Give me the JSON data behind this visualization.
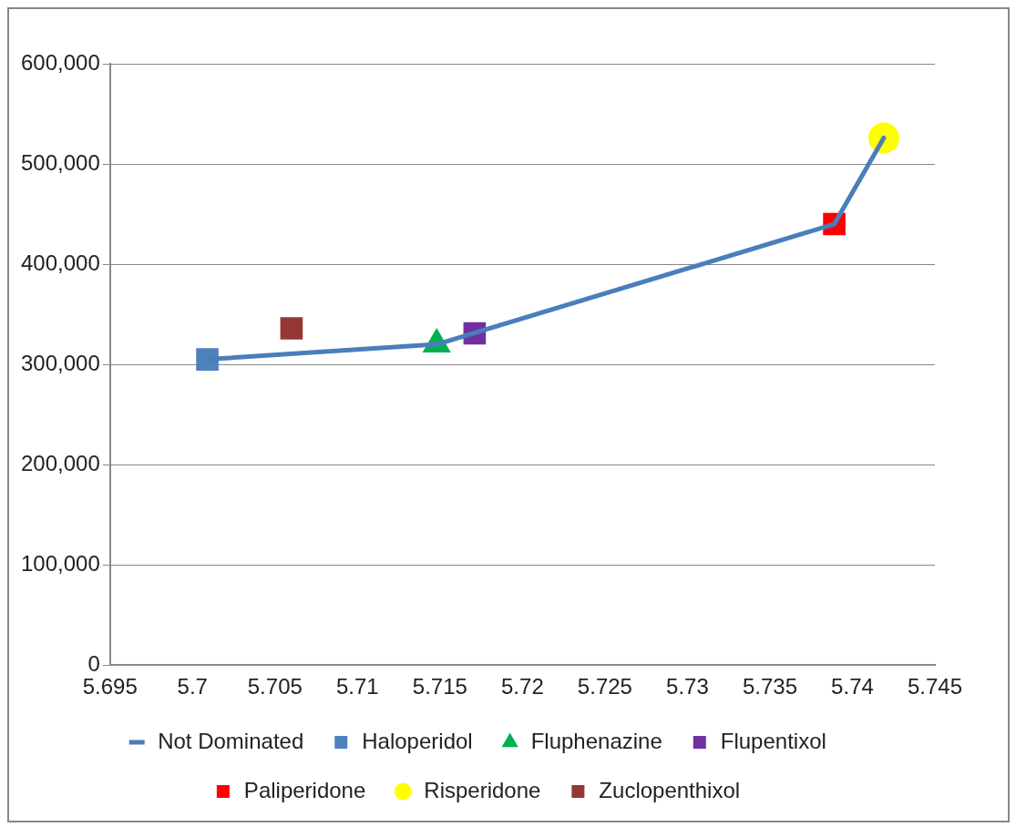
{
  "chart_data": {
    "type": "scatter",
    "xlim": [
      5.695,
      5.745
    ],
    "xticks": [
      5.695,
      5.7,
      5.705,
      5.71,
      5.715,
      5.72,
      5.725,
      5.73,
      5.735,
      5.74,
      5.745
    ],
    "ylim": [
      0,
      600000
    ],
    "yticks": [
      {
        "value": 0,
        "label": "0"
      },
      {
        "value": 100000,
        "label": "100,000"
      },
      {
        "value": 200000,
        "label": "200,000"
      },
      {
        "value": 300000,
        "label": "300,000"
      },
      {
        "value": 400000,
        "label": "400,000"
      },
      {
        "value": 500000,
        "label": "500,000"
      },
      {
        "value": 600000,
        "label": "600,000"
      }
    ],
    "grid": "y",
    "legend": "bottom",
    "series": [
      {
        "name": "Haloperidol",
        "type": "scatter",
        "marker": "square",
        "color": "#4f81bd",
        "x": [
          5.7009
        ],
        "values": [
          305000
        ]
      },
      {
        "name": "Fluphenazine",
        "type": "scatter",
        "marker": "triangle",
        "color": "#00b050",
        "x": [
          5.7148
        ],
        "values": [
          320000
        ]
      },
      {
        "name": "Flupentixol",
        "type": "scatter",
        "marker": "square",
        "color": "#7030a0",
        "x": [
          5.7171
        ],
        "values": [
          331000
        ]
      },
      {
        "name": "Paliperidone",
        "type": "scatter",
        "marker": "square",
        "color": "#ff0000",
        "x": [
          5.7389
        ],
        "values": [
          440000
        ]
      },
      {
        "name": "Risperidone",
        "type": "scatter",
        "marker": "circle",
        "color": "#ffff00",
        "x": [
          5.7419
        ],
        "values": [
          526000
        ]
      },
      {
        "name": "Zuclopenthixol",
        "type": "scatter",
        "marker": "square",
        "color": "#953735",
        "x": [
          5.706
        ],
        "values": [
          336000
        ]
      },
      {
        "name": "Not Dominated",
        "type": "line",
        "marker": "none",
        "line_style": "solid",
        "color": "#4a7ebb",
        "x": [
          5.7009,
          5.7148,
          5.7389,
          5.7419
        ],
        "values": [
          305000,
          320000,
          440000,
          526000
        ]
      }
    ]
  }
}
